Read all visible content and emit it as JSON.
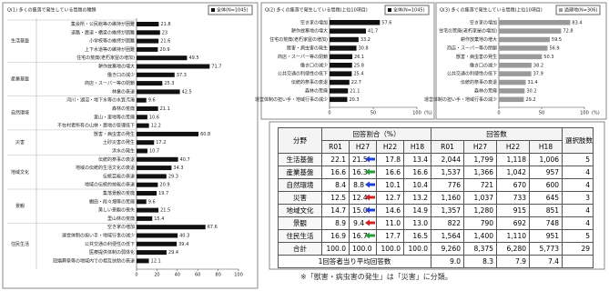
{
  "chart_data": [
    {
      "type": "bar",
      "title": "Q(1) 多くの集落で発生している問題の種類",
      "series_name": "全体(N=1045)",
      "color": "#111111",
      "groups": [
        {
          "name": "生活基盤",
          "categories": [
            "集会所・公民館等の維持が困難",
            "道路・農道・橋梁の維持が困難",
            "小学校等の維持が困難",
            "上下水道等の維持が困難",
            "住宅の荒廃(老朽家屋の増加)"
          ],
          "values": [
            21.8,
            23.0,
            21.6,
            20.9,
            49.5
          ]
        },
        {
          "name": "産業基盤",
          "categories": [
            "耕作放棄地の増大",
            "働き口の減少",
            "商店・スーパー等の閉鎖",
            "林業の衰退"
          ],
          "values": [
            71.7,
            37.3,
            25.3,
            42.5
          ]
        },
        {
          "name": "自然環境",
          "categories": [
            "河川・湖沼・地下水等の水質汚濁",
            "森林の荒廃",
            "里山・里地等の荒廃",
            "不在村者所有の山林・農地の管理低下"
          ],
          "values": [
            9.6,
            21.1,
            10.6,
            12.2
          ]
        },
        {
          "name": "災害",
          "categories": [
            "獣害・病虫害の発生",
            "土砂災害の発生",
            "洪水の発生"
          ],
          "values": [
            60.8,
            17.2,
            10.7
          ]
        },
        {
          "name": "地域文化",
          "categories": [
            "伝統的祭事の衰退",
            "地域の伝統的生活文化の衰退",
            "伝統芸能の衰退",
            "地域の伝統的技能の衰退"
          ],
          "values": [
            40.7,
            34.3,
            29.3,
            20.9
          ]
        },
        {
          "name": "景観",
          "categories": [
            "集落景観の荒廃",
            "棚田・段々畑等の荒廃",
            "美しい景観の喪失",
            "里山林の荒廃"
          ],
          "values": [
            19.7,
            9.6,
            21.5,
            15.4
          ]
        },
        {
          "name": "住民生活",
          "categories": [
            "空き家の増加",
            "運営体制の担い手・地域行事の減少",
            "公共交通の利便性の低下",
            "医療提供体制の弱体化",
            "冠婚葬祭等の地域内での相互扶助の衰退"
          ],
          "values": [
            67.6,
            40.3,
            39.4,
            29.4,
            12.1
          ]
        }
      ],
      "xlim": [
        0,
        100
      ],
      "xticks": [
        0,
        20,
        40,
        60,
        80,
        100
      ]
    },
    {
      "type": "bar",
      "title": "Q(2) 多くの集落で発生している問題(上位10項目)",
      "categories": [
        "空き家の増加",
        "耕作放棄地の増大",
        "住宅の荒廃(老朽家屋の増加)",
        "獣害・病虫害の発生",
        "商店・スーパー等の閉鎖",
        "働き口の減少",
        "公共交通の利便性の低下",
        "伝統的祭事の衰退",
        "森林の荒廃",
        "運営体制の担い手・地域行事の減少"
      ],
      "series": [
        {
          "name": "全体(N=1045)",
          "color": "#111111",
          "values": [
            57.6,
            41.7,
            33.2,
            30.8,
            26.1,
            25.8,
            25.4,
            22.7,
            21.1,
            20.3
          ]
        }
      ],
      "xlim": [
        0,
        100
      ],
      "xticks": [
        0,
        50,
        100
      ],
      "xlabel": "(%)"
    },
    {
      "type": "bar",
      "title": "Q(3) 多くの集落で発生している問題(上位10項目)",
      "categories": [
        "空き家の増加",
        "住宅の荒廃(老朽家屋の増加)",
        "耕作放棄地の増大",
        "商店・スーパー等の閉鎖",
        "獣害・病虫害の発生",
        "働き口の減少",
        "公共交通の利便性の低下",
        "伝統的祭事の衰退",
        "森林の荒廃",
        "運営体制の担い手・地域行事の減少"
      ],
      "series": [
        {
          "name": "過疎地(N=306)",
          "color": "#9a9a9a",
          "values": [
            83.4,
            72.8,
            59.5,
            56.9,
            50.3,
            38.2,
            37.9,
            31.4,
            30.2,
            29.2
          ]
        }
      ],
      "xlim": [
        0,
        100
      ],
      "xticks": [
        0,
        50,
        100
      ],
      "xlabel": "(%)"
    }
  ],
  "table": {
    "headers": [
      "分野",
      "回答割合（%）",
      "回答数",
      "選択肢数"
    ],
    "periods": [
      "R01",
      "H27",
      "H22",
      "H18"
    ],
    "rows": [
      [
        "生活基盤",
        "22.1",
        "21.5",
        "17.8",
        "13.4",
        "2,044",
        "1,799",
        "1,118",
        "1,006",
        "5"
      ],
      [
        "産業基盤",
        "16.6",
        "16.3",
        "16.6",
        "16.6",
        "1,537",
        "1,366",
        "1,042",
        "957",
        "4"
      ],
      [
        "自然環境",
        "8.4",
        "8.8",
        "10.1",
        "10.4",
        "776",
        "721",
        "670",
        "600",
        "4"
      ],
      [
        "災害",
        "12.5",
        "12.4",
        "12.7",
        "13.2",
        "1,160",
        "1,037",
        "733",
        "645",
        "3"
      ],
      [
        "地域文化",
        "14.7",
        "15.0",
        "14.6",
        "14.9",
        "1,357",
        "1,280",
        "915",
        "851",
        "4"
      ],
      [
        "景観",
        "8.9",
        "9.4",
        "11.0",
        "13.0",
        "822",
        "790",
        "692",
        "748",
        "4"
      ],
      [
        "住民生活",
        "16.9",
        "16.7",
        "17.7",
        "16.5",
        "1,564",
        "1,400",
        "1,110",
        "951",
        "5"
      ],
      [
        "合計",
        "100.0",
        "100.0",
        "100.0",
        "100.0",
        "9,260",
        "8,375",
        "6,280",
        "5,773",
        "29"
      ]
    ],
    "footer": {
      "label": "1回答者当り平均回答数",
      "values": [
        "9.0",
        "8.3",
        "7.9",
        "7.4"
      ]
    }
  },
  "note": "※「獣害・病虫害の発生」は「災害」に分類。"
}
